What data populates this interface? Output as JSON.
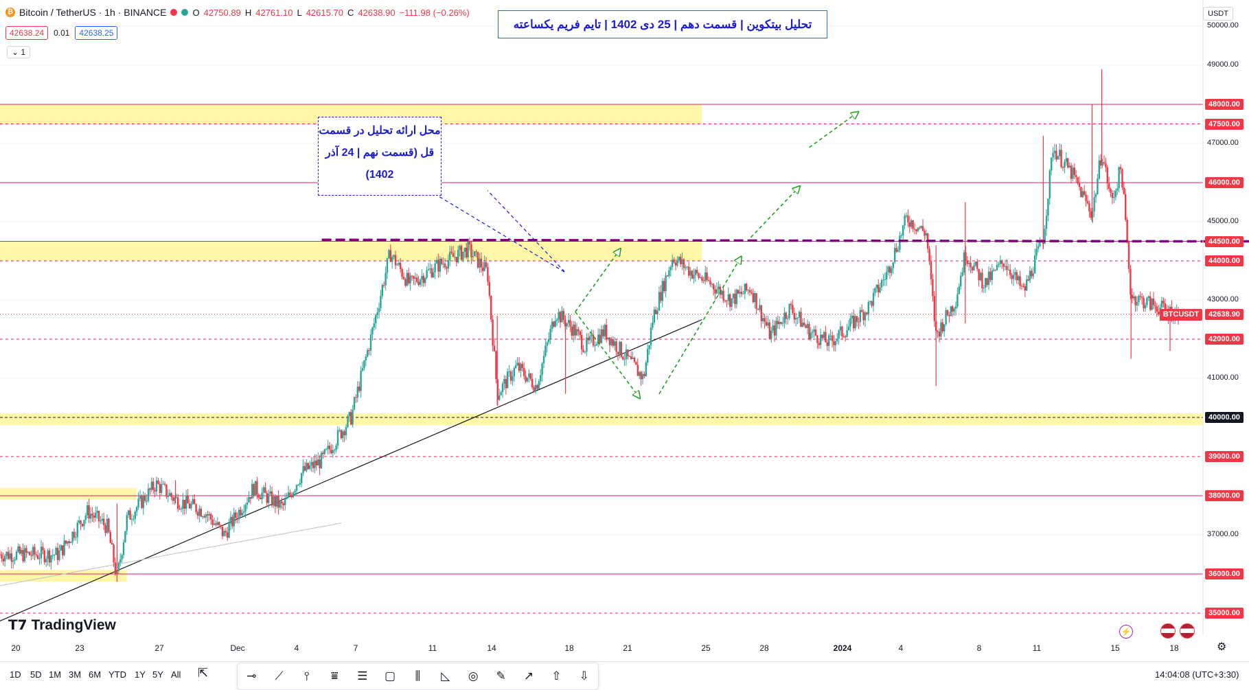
{
  "header": {
    "symbol": "Bitcoin / TetherUS · 1h · BINANCE",
    "open_label": "O",
    "open": "42750.89",
    "high_label": "H",
    "high": "42761.10",
    "low_label": "L",
    "low": "42615.70",
    "close_label": "C",
    "close": "42638.90",
    "change": "−111.98 (−0.26%)",
    "bid": "42638.24",
    "spread": "0.01",
    "ask": "42638.25",
    "visibility": "⌄ 1"
  },
  "title": "تحلیل بیتکوین | قسمت دهم | 25 دی 1402 | تایم فریم یکساعته",
  "note": "محل ارائه تحلیل در قسمت قل (قسمت نهم | 24 آذر 1402)",
  "currency": "USDT",
  "symbol_tag": "BTCUSDT",
  "branding": "TradingView",
  "clock": "14:04:08 (UTC+3:30)",
  "ranges": [
    "1D",
    "5D",
    "1M",
    "3M",
    "6M",
    "YTD",
    "1Y",
    "5Y",
    "All"
  ],
  "colors": {
    "up": "#26a69a",
    "down": "#f23645",
    "zone": "#fff59d",
    "level": "#e91e63",
    "purple": "#800080",
    "green": "#1e9e1e",
    "blue": "#1b1bd6"
  },
  "chart_data": {
    "type": "candlestick",
    "symbol": "BTCUSDT",
    "timeframe": "1h",
    "y_ticks": [
      35000,
      36000,
      37000,
      38000,
      39000,
      40000,
      41000,
      42000,
      43000,
      44000,
      45000,
      46000,
      47000,
      48000,
      49000,
      50000
    ],
    "highlighted_levels": [
      "48000.00",
      "47500.00",
      "46000.00",
      "44500.00",
      "44000.00",
      "42000.00",
      "40000.00",
      "39000.00",
      "38000.00",
      "36000.00",
      "35000.00"
    ],
    "last_price": "42638.90",
    "x_labels": [
      "20",
      "23",
      "27",
      "Dec",
      "4",
      "7",
      "11",
      "14",
      "18",
      "21",
      "25",
      "28",
      "2024",
      "4",
      "8",
      "11",
      "15",
      "18"
    ],
    "solid_levels": [
      48000,
      46000,
      44500,
      38000,
      36000
    ],
    "dashed_levels": [
      47500,
      44000,
      42000,
      39000,
      35000
    ],
    "black_dashed_level": 40000,
    "zones": [
      {
        "y0": 47500,
        "y1": 48000,
        "d0": -3,
        "d1": 33
      },
      {
        "y0": 44000,
        "y1": 44500,
        "d0": -3,
        "d1": 33
      },
      {
        "y0": 39800,
        "y1": 40100,
        "d0": -3,
        "d1": 61
      },
      {
        "y0": 37900,
        "y1": 38200,
        "d0": -3,
        "d1": 4
      },
      {
        "y0": 35800,
        "y1": 36100,
        "d0": -3,
        "d1": 3.5
      }
    ],
    "price_path": [
      [
        0,
        36500
      ],
      [
        1.5,
        37600
      ],
      [
        2.5,
        37200
      ],
      [
        3,
        35900
      ],
      [
        3.5,
        37400
      ],
      [
        5,
        38300
      ],
      [
        6,
        37900
      ],
      [
        7.5,
        37600
      ],
      [
        8.5,
        37000
      ],
      [
        10,
        38200
      ],
      [
        11.5,
        37700
      ],
      [
        12.5,
        38600
      ],
      [
        13.5,
        38900
      ],
      [
        15,
        40000
      ],
      [
        16,
        42000
      ],
      [
        17,
        44200
      ],
      [
        18,
        43400
      ],
      [
        19.5,
        43900
      ],
      [
        21,
        44300
      ],
      [
        22,
        43700
      ],
      [
        22.5,
        40600
      ],
      [
        23.5,
        41300
      ],
      [
        24.5,
        40800
      ],
      [
        25.5,
        42700
      ],
      [
        26.5,
        42200
      ],
      [
        27,
        41800
      ],
      [
        28,
        42200
      ],
      [
        29,
        41600
      ],
      [
        30,
        41000
      ],
      [
        30.5,
        42600
      ],
      [
        31.5,
        44100
      ],
      [
        32.5,
        43700
      ],
      [
        33.5,
        43400
      ],
      [
        34.5,
        43000
      ],
      [
        35.5,
        43300
      ],
      [
        36.5,
        42100
      ],
      [
        37.5,
        42800
      ],
      [
        38.5,
        42200
      ],
      [
        39.5,
        41900
      ],
      [
        40.5,
        42300
      ],
      [
        41.5,
        42800
      ],
      [
        42.5,
        43700
      ],
      [
        43.5,
        45100
      ],
      [
        44.5,
        44700
      ],
      [
        45,
        42100
      ],
      [
        46,
        43000
      ],
      [
        46.5,
        44200
      ],
      [
        47.5,
        43400
      ],
      [
        48.5,
        44000
      ],
      [
        49.5,
        43200
      ],
      [
        50.5,
        44600
      ],
      [
        51,
        46900
      ],
      [
        52,
        46200
      ],
      [
        53,
        45200
      ],
      [
        53.5,
        46800
      ],
      [
        54,
        45500
      ],
      [
        54.5,
        46400
      ],
      [
        55,
        43100
      ],
      [
        56,
        42900
      ],
      [
        57,
        42700
      ],
      [
        57.5,
        42638.9
      ]
    ],
    "spikes": [
      [
        3,
        35800,
        37800
      ],
      [
        6,
        37800,
        38400
      ],
      [
        22.5,
        40300,
        42600
      ],
      [
        26,
        40600,
        42600
      ],
      [
        45,
        40800,
        44400
      ],
      [
        46.5,
        42400,
        45500
      ],
      [
        50.5,
        44300,
        47200
      ],
      [
        53,
        45000,
        48000
      ],
      [
        53.5,
        46500,
        48900
      ],
      [
        55,
        41500,
        43300
      ],
      [
        57,
        41700,
        42800
      ]
    ],
    "trendline": [
      [
        -3,
        34800
      ],
      [
        33,
        42500
      ]
    ],
    "secondary_line": [
      [
        -3,
        35700
      ],
      [
        14.5,
        37300
      ]
    ],
    "purple_arrow": [
      [
        13.5,
        44500
      ],
      [
        57.6,
        44500
      ],
      [
        62.2,
        44500
      ]
    ],
    "green_path_1": [
      [
        26.5,
        42700
      ],
      [
        28.8,
        44300
      ]
    ],
    "green_path_2": [
      [
        26.5,
        42700
      ],
      [
        29.8,
        40500
      ]
    ],
    "green_path_3": [
      [
        30.8,
        40600
      ],
      [
        35,
        44100
      ]
    ],
    "green_path_4": [
      [
        35.5,
        44600
      ],
      [
        38,
        45900
      ]
    ],
    "green_path_5": [
      [
        38.5,
        46900
      ],
      [
        41,
        47800
      ]
    ],
    "note_leader": [
      [
        19,
        45800
      ],
      [
        26,
        43700
      ],
      [
        22,
        45800
      ]
    ]
  }
}
